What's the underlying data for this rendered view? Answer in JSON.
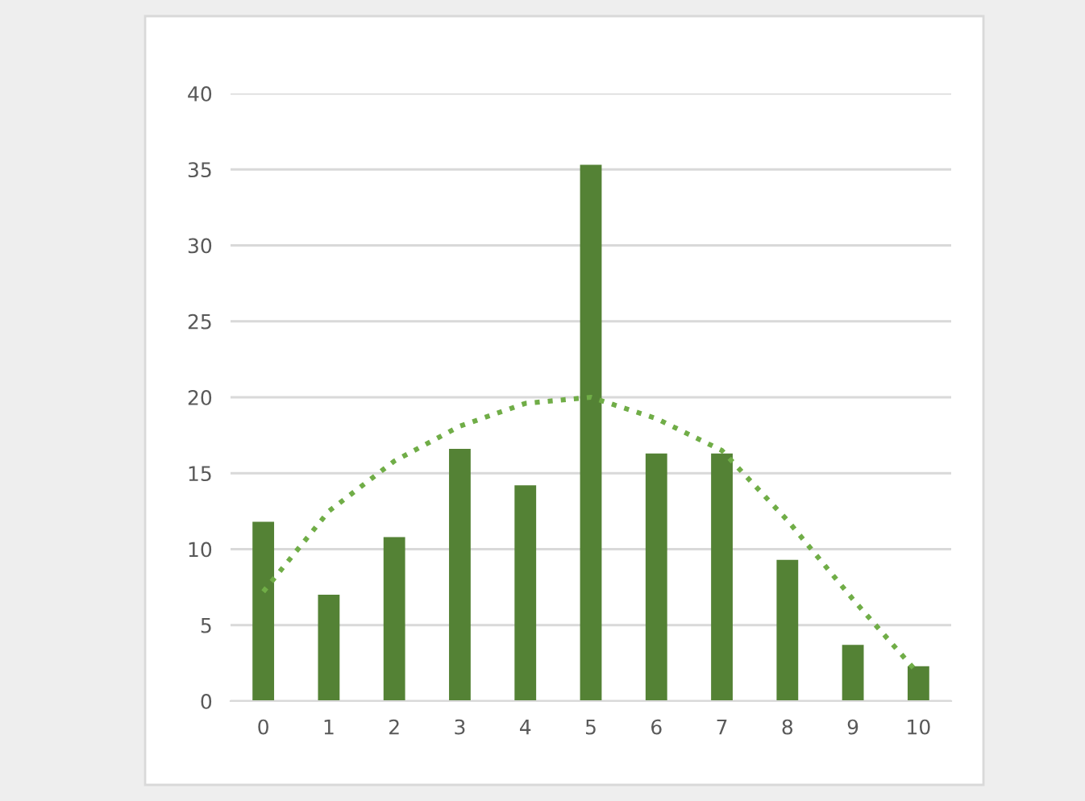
{
  "chart_data": {
    "type": "bar",
    "categories": [
      "0",
      "1",
      "2",
      "3",
      "4",
      "5",
      "6",
      "7",
      "8",
      "9",
      "10"
    ],
    "series": [
      {
        "type": "bar",
        "color": "#548235",
        "values": [
          11.8,
          7.0,
          10.8,
          16.6,
          14.2,
          35.3,
          16.3,
          16.3,
          9.3,
          3.7,
          2.3
        ]
      },
      {
        "type": "line",
        "color": "#70ad47",
        "line_style": "dotted",
        "values": [
          7.2,
          12.5,
          15.8,
          18.1,
          19.6,
          20.0,
          18.6,
          16.5,
          11.9,
          6.7,
          1.8
        ]
      }
    ],
    "ylim": [
      0,
      40
    ],
    "yticks": [
      0,
      5,
      10,
      15,
      20,
      25,
      30,
      35,
      40
    ],
    "grid": "y",
    "legend": false
  }
}
